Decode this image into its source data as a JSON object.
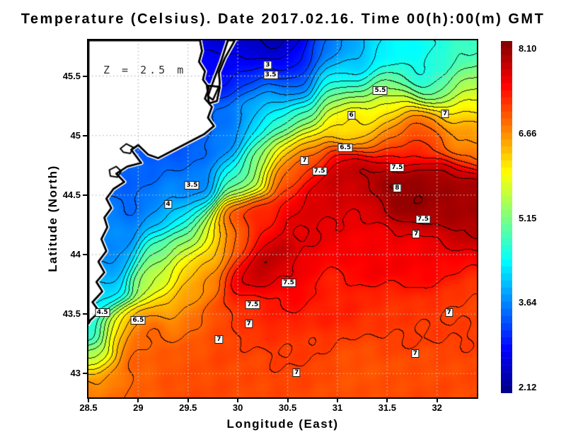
{
  "chart_data": {
    "type": "heatmap",
    "title": "Temperature (Celsius). Date 2017.02.16. Time 00(h):00(m) GMT",
    "xlabel": "Longitude (East)",
    "ylabel": "Latitude (North)",
    "annotation": "Z = 2.5 m",
    "x_range": [
      28.5,
      32.4
    ],
    "y_range": [
      42.8,
      45.8
    ],
    "x_ticks": [
      28.5,
      29,
      29.5,
      30,
      30.5,
      31,
      31.5,
      32
    ],
    "x_tick_labels": [
      "28.5",
      "29",
      "29.5",
      "30",
      "30.5",
      "31",
      "31.5",
      "32"
    ],
    "y_ticks": [
      43,
      43.5,
      44,
      44.5,
      45,
      45.5
    ],
    "y_tick_labels": [
      "43",
      "43.5",
      "44",
      "44.5",
      "45",
      "45.5"
    ],
    "grid": true,
    "grid_color": "#bdbdbd",
    "contour_interval": 0.25,
    "contour_color": "#000000",
    "land_color": "#ffffff",
    "coast_color": "#000000",
    "colorbar": {
      "min": 2.12,
      "max": 8.1,
      "steps": 50,
      "labels": [
        "8.10",
        "6.66",
        "5.15",
        "3.64",
        "2.12"
      ]
    },
    "colormap": [
      [
        0.0,
        "#000083"
      ],
      [
        0.125,
        "#0000ff"
      ],
      [
        0.375,
        "#00ffff"
      ],
      [
        0.625,
        "#ffff00"
      ],
      [
        0.875,
        "#ff0000"
      ],
      [
        1.0,
        "#800000"
      ]
    ],
    "contour_labels": [
      {
        "v": "3",
        "lon": 30.3,
        "lat": 45.59
      },
      {
        "v": "3.5",
        "lon": 30.33,
        "lat": 45.51
      },
      {
        "v": "5.5",
        "lon": 31.43,
        "lat": 45.38
      },
      {
        "v": "6",
        "lon": 31.14,
        "lat": 45.17
      },
      {
        "v": "7",
        "lon": 32.08,
        "lat": 45.18
      },
      {
        "v": "6.5",
        "lon": 31.08,
        "lat": 44.9
      },
      {
        "v": "7",
        "lon": 30.67,
        "lat": 44.79
      },
      {
        "v": "7.5",
        "lon": 30.82,
        "lat": 44.7
      },
      {
        "v": "7.5",
        "lon": 31.6,
        "lat": 44.73
      },
      {
        "v": "8",
        "lon": 31.6,
        "lat": 44.56
      },
      {
        "v": "3.5",
        "lon": 29.54,
        "lat": 44.58
      },
      {
        "v": "4",
        "lon": 29.3,
        "lat": 44.42
      },
      {
        "v": "7.5",
        "lon": 31.86,
        "lat": 44.3
      },
      {
        "v": "7",
        "lon": 31.79,
        "lat": 44.17
      },
      {
        "v": "7.5",
        "lon": 30.51,
        "lat": 43.76
      },
      {
        "v": "7.5",
        "lon": 30.15,
        "lat": 43.58
      },
      {
        "v": "7",
        "lon": 30.11,
        "lat": 43.42
      },
      {
        "v": "4.5",
        "lon": 28.64,
        "lat": 43.51
      },
      {
        "v": "6.5",
        "lon": 29.0,
        "lat": 43.45
      },
      {
        "v": "7",
        "lon": 29.81,
        "lat": 43.29
      },
      {
        "v": "7",
        "lon": 32.12,
        "lat": 43.51
      },
      {
        "v": "7",
        "lon": 31.78,
        "lat": 43.17
      },
      {
        "v": "7",
        "lon": 30.59,
        "lat": 43.01
      }
    ],
    "temperature_points": [
      [
        29.9,
        45.78,
        2.5,
        0.3
      ],
      [
        30.45,
        45.73,
        2.3,
        0.3
      ],
      [
        30.05,
        45.52,
        3.1,
        0.25
      ],
      [
        29.72,
        45.62,
        2.9,
        0.25
      ],
      [
        30.4,
        45.38,
        3.6,
        0.25
      ],
      [
        30.9,
        45.68,
        3.6,
        0.3
      ],
      [
        31.6,
        45.78,
        4.3,
        0.3
      ],
      [
        32.35,
        45.78,
        4.7,
        0.35
      ],
      [
        31.2,
        45.58,
        3.9,
        0.25
      ],
      [
        31.9,
        45.55,
        4.5,
        0.3
      ],
      [
        30.6,
        45.55,
        3.0,
        0.25
      ],
      [
        29.78,
        45.55,
        3.0,
        0.15
      ],
      [
        30.95,
        45.42,
        5.2,
        0.22
      ],
      [
        31.45,
        45.36,
        5.5,
        0.25
      ],
      [
        32.35,
        45.33,
        5.6,
        0.3
      ],
      [
        31.1,
        45.15,
        6.1,
        0.22
      ],
      [
        31.5,
        45.13,
        6.0,
        0.25
      ],
      [
        32.35,
        45.02,
        6.6,
        0.28
      ],
      [
        31.75,
        45.03,
        7.0,
        0.25
      ],
      [
        30.55,
        45.1,
        5.1,
        0.25
      ],
      [
        30.28,
        45.22,
        4.2,
        0.25
      ],
      [
        29.45,
        45.02,
        3.2,
        0.28
      ],
      [
        29.95,
        45.08,
        3.5,
        0.25
      ],
      [
        29.75,
        44.9,
        3.6,
        0.25
      ],
      [
        29.05,
        44.55,
        3.4,
        0.3
      ],
      [
        29.5,
        44.55,
        3.6,
        0.25
      ],
      [
        29.3,
        44.38,
        4.0,
        0.22
      ],
      [
        28.62,
        44.1,
        3.7,
        0.3
      ],
      [
        28.56,
        43.65,
        4.1,
        0.25
      ],
      [
        28.52,
        43.4,
        4.5,
        0.18
      ],
      [
        30.0,
        44.62,
        4.9,
        0.2
      ],
      [
        30.25,
        44.85,
        5.2,
        0.22
      ],
      [
        28.8,
        43.4,
        6.2,
        0.18
      ],
      [
        29.1,
        43.28,
        6.8,
        0.22
      ],
      [
        28.55,
        43.12,
        5.2,
        0.15
      ],
      [
        28.62,
        42.95,
        6.3,
        0.18
      ],
      [
        28.9,
        42.85,
        6.8,
        0.25
      ],
      [
        29.35,
        43.55,
        6.4,
        0.22
      ],
      [
        29.45,
        43.9,
        6.5,
        0.25
      ],
      [
        29.55,
        44.25,
        4.9,
        0.2
      ],
      [
        29.75,
        44.15,
        5.6,
        0.2
      ],
      [
        29.98,
        44.05,
        6.6,
        0.22
      ],
      [
        29.3,
        44.02,
        4.6,
        0.22
      ],
      [
        29.18,
        43.78,
        5.3,
        0.2
      ],
      [
        30.7,
        44.85,
        6.8,
        0.22
      ],
      [
        30.5,
        44.72,
        7.0,
        0.22
      ],
      [
        31.0,
        44.6,
        7.7,
        0.25
      ],
      [
        31.6,
        44.57,
        8.05,
        0.28
      ],
      [
        32.15,
        44.47,
        7.95,
        0.28
      ],
      [
        32.38,
        44.22,
        7.8,
        0.3
      ],
      [
        31.6,
        44.9,
        7.1,
        0.22
      ],
      [
        31.2,
        44.42,
        7.5,
        0.25
      ],
      [
        30.85,
        44.33,
        7.5,
        0.25
      ],
      [
        30.2,
        43.92,
        7.9,
        0.22
      ],
      [
        30.52,
        43.77,
        7.5,
        0.22
      ],
      [
        30.1,
        44.32,
        7.2,
        0.22
      ],
      [
        31.3,
        44.05,
        7.4,
        0.28
      ],
      [
        32.0,
        43.95,
        7.35,
        0.28
      ],
      [
        32.38,
        43.8,
        7.1,
        0.28
      ],
      [
        29.9,
        44.2,
        6.9,
        0.2
      ],
      [
        30.15,
        43.48,
        7.1,
        0.22
      ],
      [
        29.82,
        43.28,
        7.0,
        0.22
      ],
      [
        29.6,
        43.38,
        6.8,
        0.2
      ],
      [
        30.42,
        43.58,
        7.25,
        0.22
      ],
      [
        30.95,
        43.6,
        7.15,
        0.25
      ],
      [
        31.55,
        43.42,
        7.05,
        0.28
      ],
      [
        32.1,
        43.48,
        7.05,
        0.25
      ],
      [
        32.38,
        43.58,
        6.95,
        0.25
      ],
      [
        29.45,
        43.0,
        6.9,
        0.28
      ],
      [
        30.05,
        42.95,
        6.9,
        0.28
      ],
      [
        30.62,
        42.88,
        6.95,
        0.28
      ],
      [
        31.25,
        43.05,
        6.9,
        0.28
      ],
      [
        31.9,
        42.88,
        6.9,
        0.3
      ],
      [
        32.38,
        42.82,
        6.9,
        0.3
      ],
      [
        28.6,
        42.82,
        6.8,
        0.25
      ],
      [
        30.6,
        43.2,
        7.0,
        0.25
      ]
    ],
    "land_polygons": [
      [
        [
          28.5,
          45.8
        ],
        [
          29.62,
          45.8
        ],
        [
          29.64,
          45.71
        ],
        [
          29.61,
          45.62
        ],
        [
          29.67,
          45.54
        ],
        [
          29.65,
          45.47
        ],
        [
          29.71,
          45.4
        ],
        [
          29.67,
          45.31
        ],
        [
          29.74,
          45.24
        ],
        [
          29.7,
          45.15
        ],
        [
          29.76,
          45.08
        ],
        [
          29.66,
          45.01
        ],
        [
          29.2,
          44.81
        ],
        [
          29.1,
          44.84
        ],
        [
          29.0,
          44.92
        ],
        [
          28.93,
          44.88
        ],
        [
          29.03,
          44.77
        ],
        [
          28.89,
          44.74
        ],
        [
          28.78,
          44.68
        ],
        [
          28.86,
          44.61
        ],
        [
          28.75,
          44.55
        ],
        [
          28.68,
          44.47
        ],
        [
          28.73,
          44.39
        ],
        [
          28.66,
          44.31
        ],
        [
          28.69,
          44.23
        ],
        [
          28.63,
          44.13
        ],
        [
          28.68,
          44.03
        ],
        [
          28.6,
          43.94
        ],
        [
          28.66,
          43.85
        ],
        [
          28.58,
          43.77
        ],
        [
          28.64,
          43.69
        ],
        [
          28.54,
          43.6
        ],
        [
          28.61,
          43.52
        ],
        [
          28.52,
          43.45
        ],
        [
          28.5,
          43.42
        ]
      ],
      [
        [
          29.9,
          45.8
        ],
        [
          29.97,
          45.8
        ],
        [
          29.87,
          45.65
        ],
        [
          29.81,
          45.53
        ],
        [
          29.82,
          45.43
        ],
        [
          29.75,
          45.3
        ],
        [
          29.7,
          45.33
        ],
        [
          29.76,
          45.47
        ],
        [
          29.83,
          45.62
        ]
      ],
      [
        [
          29.69,
          45.42
        ],
        [
          29.82,
          45.41
        ],
        [
          29.79,
          45.29
        ],
        [
          29.71,
          45.27
        ]
      ]
    ],
    "lagoon_outlines": [
      [
        [
          28.82,
          44.89
        ],
        [
          28.88,
          44.93
        ],
        [
          28.95,
          44.9
        ],
        [
          28.92,
          44.85
        ],
        [
          28.85,
          44.86
        ]
      ],
      [
        [
          28.71,
          44.71
        ],
        [
          28.78,
          44.74
        ],
        [
          28.83,
          44.7
        ],
        [
          28.79,
          44.65
        ],
        [
          28.72,
          44.66
        ]
      ]
    ]
  }
}
